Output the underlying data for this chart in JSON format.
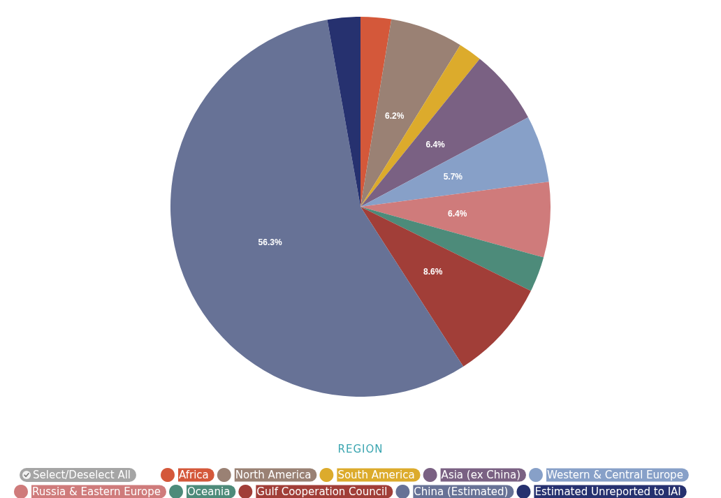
{
  "chart_data": {
    "type": "pie",
    "legend_title": "REGION",
    "legend": "bottom",
    "annotations": [
      "Select/Deselect All"
    ],
    "categories": [
      "Africa",
      "North America",
      "South America",
      "Asia (ex China)",
      "Western & Central Europe",
      "Russia & Eastern Europe",
      "Oceania",
      "Gulf Cooperation Council",
      "China (Estimated)",
      "Estimated Unreported to IAI"
    ],
    "values": [
      2.6,
      6.2,
      2.0,
      6.4,
      5.7,
      6.4,
      3.0,
      8.6,
      56.3,
      2.8
    ],
    "value_labels": [
      null,
      "6.2%",
      null,
      "6.4%",
      "5.7%",
      "6.4%",
      null,
      "8.6%",
      "56.3%",
      null
    ],
    "colors": [
      "#d4583a",
      "#9a8174",
      "#dcab2c",
      "#7a6183",
      "#87a0c8",
      "#cf7b7b",
      "#4d8b7a",
      "#a13e38",
      "#677296",
      "#26316f"
    ]
  }
}
